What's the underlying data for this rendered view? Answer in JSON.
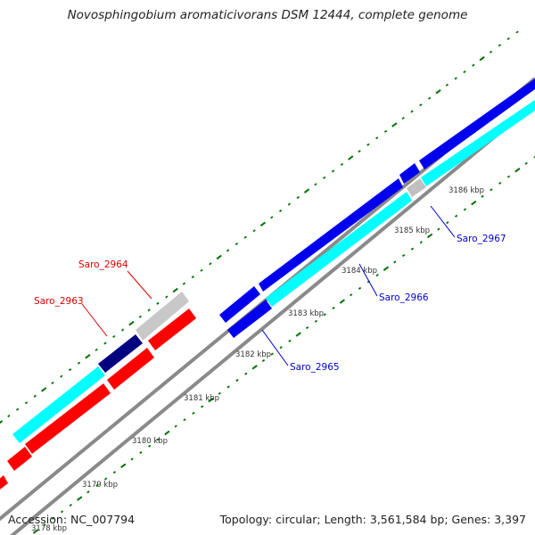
{
  "title": "Novosphingobium aromaticivorans DSM 12444, complete genome",
  "footer": {
    "accession": "Accession: NC_007794",
    "stats": "Topology: circular; Length: 3,561,584 bp; Genes: 3,397"
  },
  "colors": {
    "backbone": "#808080",
    "forward_cds": "#0000ee",
    "forward_cds_light": "#00ffff",
    "reverse_cds": "#ff0000",
    "hypothetical": "#c8c8c8",
    "dark_segment": "#000080",
    "tick": "#007000",
    "forward_label": "#0000cc",
    "reverse_label": "#dd0000"
  },
  "ticks": [
    {
      "label": "3178 kbp"
    },
    {
      "label": "3179 kbp"
    },
    {
      "label": "3180 kbp"
    },
    {
      "label": "3181 kbp"
    },
    {
      "label": "3182 kbp"
    },
    {
      "label": "3183 kbp"
    },
    {
      "label": "3184 kbp"
    },
    {
      "label": "3185 kbp"
    },
    {
      "label": "3186 kbp"
    }
  ],
  "gene_labels": [
    {
      "name": "Saro_2963",
      "strand": "reverse"
    },
    {
      "name": "Saro_2964",
      "strand": "reverse"
    },
    {
      "name": "Saro_2965",
      "strand": "forward"
    },
    {
      "name": "Saro_2966",
      "strand": "forward"
    },
    {
      "name": "Saro_2967",
      "strand": "forward"
    }
  ]
}
